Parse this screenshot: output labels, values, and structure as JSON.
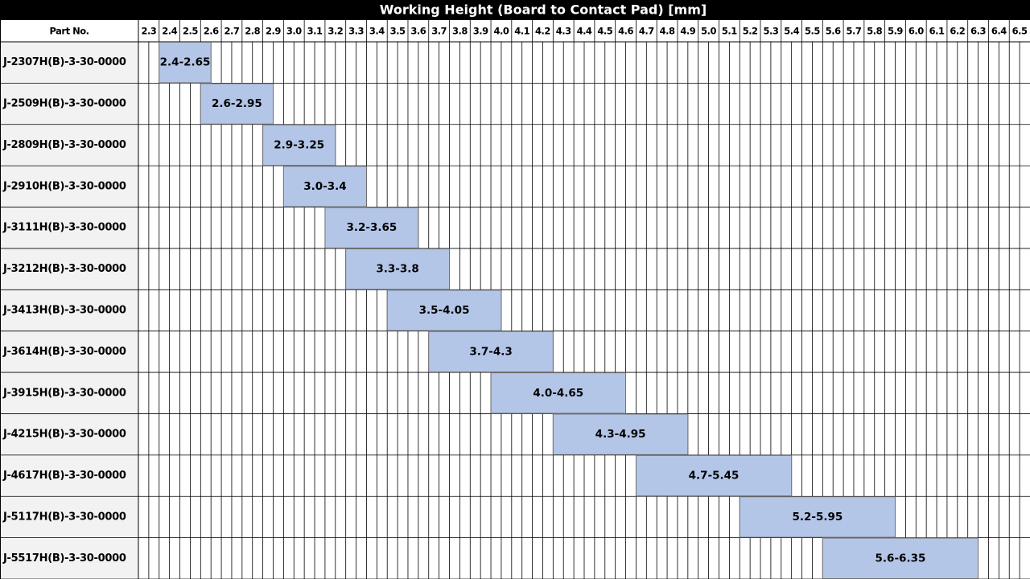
{
  "chart_data": {
    "type": "range-bar",
    "title": "Working Height (Board to Contact Pad) [mm]",
    "category_header": "Part No.",
    "categories": [
      "J-2307H(B)-3-30-0000",
      "J-2509H(B)-3-30-0000",
      "J-2809H(B)-3-30-0000",
      "J-2910H(B)-3-30-0000",
      "J-3111H(B)-3-30-0000",
      "J-3212H(B)-3-30-0000",
      "J-3413H(B)-3-30-0000",
      "J-3614H(B)-3-30-0000",
      "J-3915H(B)-3-30-0000",
      "J-4215H(B)-3-30-0000",
      "J-4617H(B)-3-30-0000",
      "J-5117H(B)-3-30-0000",
      "J-5517H(B)-3-30-0000"
    ],
    "values": [
      [
        2.4,
        2.65
      ],
      [
        2.6,
        2.95
      ],
      [
        2.9,
        3.25
      ],
      [
        3.0,
        3.4
      ],
      [
        3.2,
        3.65
      ],
      [
        3.3,
        3.8
      ],
      [
        3.5,
        4.05
      ],
      [
        3.7,
        4.3
      ],
      [
        4.0,
        4.65
      ],
      [
        4.3,
        4.95
      ],
      [
        4.7,
        5.45
      ],
      [
        5.2,
        5.95
      ],
      [
        5.6,
        6.35
      ]
    ],
    "value_labels": [
      "2.4-2.65",
      "2.6-2.95",
      "2.9-3.25",
      "3.0-3.4",
      "3.2-3.65",
      "3.3-3.8",
      "3.5-4.05",
      "3.7-4.3",
      "4.0-4.65",
      "4.3-4.95",
      "4.7-5.45",
      "5.2-5.95",
      "5.6-6.35"
    ],
    "color": "#b4c6e7",
    "xlim": [
      2.3,
      6.6
    ],
    "xticks": [
      2.3,
      2.4,
      2.5,
      2.6,
      2.7,
      2.8,
      2.9,
      {
        "value": 3,
        "label": "3.0"
      },
      3.1,
      3.2,
      3.3,
      3.4,
      3.5,
      3.6,
      3.7,
      3.8,
      3.9,
      {
        "value": 4,
        "label": "4.0"
      },
      4.1,
      4.2,
      4.3,
      4.4,
      4.5,
      4.6,
      4.7,
      4.8,
      4.9,
      {
        "value": 5,
        "label": "5.0"
      },
      5.1,
      5.2,
      5.3,
      5.4,
      5.5,
      5.6,
      5.7,
      5.8,
      5.9,
      {
        "value": 6,
        "label": "6.0"
      },
      6.1,
      6.2,
      6.3,
      6.4,
      6.5
    ]
  }
}
